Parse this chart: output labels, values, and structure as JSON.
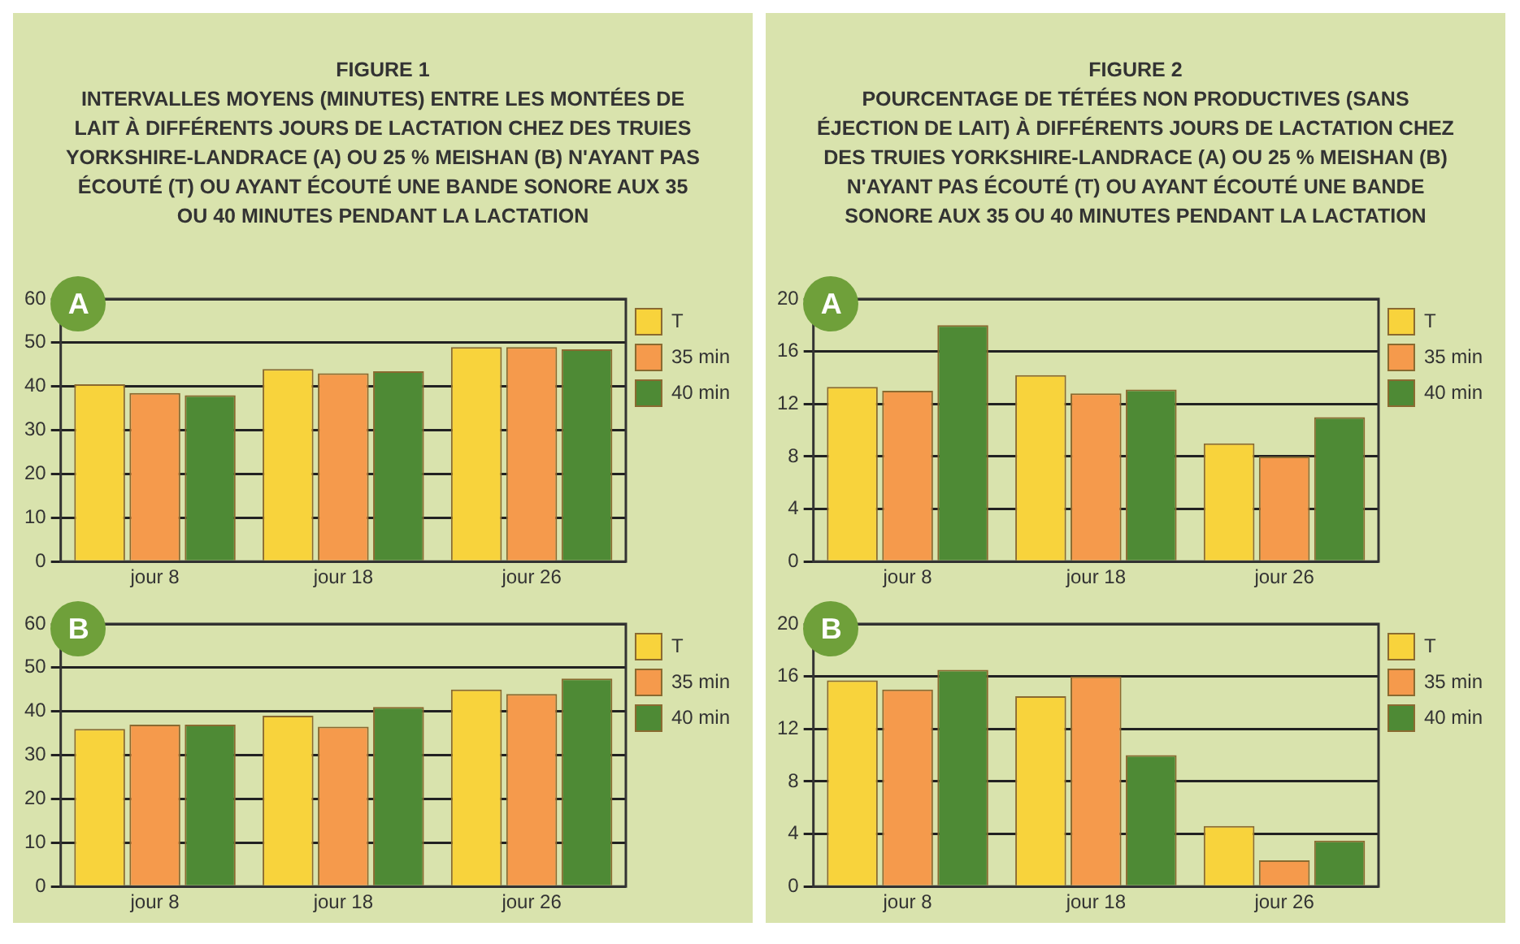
{
  "chart_data": [
    {
      "type": "bar",
      "title": "FIGURE 1",
      "subtitle": "INTERVALLES MOYENS (MINUTES) ENTRE LES MONTÉES DE LAIT À DIFFÉRENTS JOURS DE LACTATION CHEZ DES TRUIES YORKSHIRE-LANDRACE (A) OU 25 % MEISHAN (B) N'AYANT PAS ÉCOUTÉ (T) OU AYANT ÉCOUTÉ UNE BANDE SONORE AUX 35 OU 40 MINUTES PENDANT LA LACTATION",
      "annotations": [
        "A"
      ],
      "categories": [
        "jour 8",
        "jour 18",
        "jour 26"
      ],
      "series": [
        {
          "name": "T",
          "color": "#f8d33c",
          "values": [
            40.5,
            44,
            49
          ]
        },
        {
          "name": "35 min",
          "color": "#f59a4c",
          "values": [
            38.5,
            43,
            49
          ]
        },
        {
          "name": "40 min",
          "color": "#4e8a35",
          "values": [
            38,
            43.5,
            48.5
          ]
        }
      ],
      "ylim": [
        0,
        60
      ],
      "yticks": [
        0,
        10,
        20,
        30,
        40,
        50,
        60
      ],
      "grid": "y",
      "legend": "top right"
    },
    {
      "type": "bar",
      "annotations": [
        "B"
      ],
      "categories": [
        "jour 8",
        "jour 18",
        "jour 26"
      ],
      "series": [
        {
          "name": "T",
          "color": "#f8d33c",
          "values": [
            36,
            39,
            45
          ]
        },
        {
          "name": "35 min",
          "color": "#f59a4c",
          "values": [
            37,
            36.5,
            44
          ]
        },
        {
          "name": "40 min",
          "color": "#4e8a35",
          "values": [
            37,
            41,
            47.5
          ]
        }
      ],
      "ylim": [
        0,
        60
      ],
      "yticks": [
        0,
        10,
        20,
        30,
        40,
        50,
        60
      ],
      "grid": "y",
      "legend": "top right"
    },
    {
      "type": "bar",
      "title": "FIGURE 2",
      "subtitle": "POURCENTAGE DE TÉTÉES NON PRODUCTIVES (SANS ÉJECTION DE LAIT) À DIFFÉRENTS JOURS DE LACTATION CHEZ DES TRUIES YORKSHIRE-LANDRACE (A) OU 25 % MEISHAN (B) N'AYANT PAS ÉCOUTÉ (T) OU AYANT ÉCOUTÉ UNE BANDE SONORE AUX 35 OU 40 MINUTES PENDANT LA LACTATION",
      "annotations": [
        "A"
      ],
      "categories": [
        "jour 8",
        "jour 18",
        "jour 26"
      ],
      "series": [
        {
          "name": "T",
          "color": "#f8d33c",
          "values": [
            13.3,
            14.2,
            9
          ]
        },
        {
          "name": "35 min",
          "color": "#f59a4c",
          "values": [
            13,
            12.8,
            8
          ]
        },
        {
          "name": "40 min",
          "color": "#4e8a35",
          "values": [
            18,
            13.1,
            11
          ]
        }
      ],
      "ylim": [
        0,
        20
      ],
      "yticks": [
        0,
        4,
        8,
        12,
        16,
        20
      ],
      "grid": "y",
      "legend": "top right"
    },
    {
      "type": "bar",
      "annotations": [
        "B"
      ],
      "categories": [
        "jour 8",
        "jour 18",
        "jour 26"
      ],
      "series": [
        {
          "name": "T",
          "color": "#f8d33c",
          "values": [
            15.7,
            14.5,
            4.6
          ]
        },
        {
          "name": "35 min",
          "color": "#f59a4c",
          "values": [
            15,
            16,
            2
          ]
        },
        {
          "name": "40 min",
          "color": "#4e8a35",
          "values": [
            16.5,
            10,
            3.5
          ]
        }
      ],
      "ylim": [
        0,
        20
      ],
      "yticks": [
        0,
        4,
        8,
        12,
        16,
        20
      ],
      "grid": "y",
      "legend": "top right"
    }
  ]
}
